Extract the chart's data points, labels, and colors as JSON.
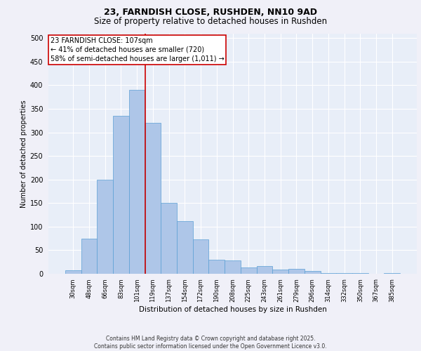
{
  "title_line1": "23, FARNDISH CLOSE, RUSHDEN, NN10 9AD",
  "title_line2": "Size of property relative to detached houses in Rushden",
  "xlabel": "Distribution of detached houses by size in Rushden",
  "ylabel": "Number of detached properties",
  "categories": [
    "30sqm",
    "48sqm",
    "66sqm",
    "83sqm",
    "101sqm",
    "119sqm",
    "137sqm",
    "154sqm",
    "172sqm",
    "190sqm",
    "208sqm",
    "225sqm",
    "243sqm",
    "261sqm",
    "279sqm",
    "296sqm",
    "314sqm",
    "332sqm",
    "350sqm",
    "367sqm",
    "385sqm"
  ],
  "values": [
    8,
    75,
    200,
    335,
    390,
    320,
    150,
    112,
    73,
    30,
    28,
    14,
    17,
    9,
    11,
    6,
    2,
    1,
    1,
    0,
    1
  ],
  "bar_color": "#aec6e8",
  "bar_edge_color": "#5a9fd4",
  "background_color": "#e8eef8",
  "grid_color": "#ffffff",
  "property_label": "23 FARNDISH CLOSE: 107sqm",
  "pct_smaller": 41,
  "n_smaller": 720,
  "pct_larger_semi": 58,
  "n_larger_semi": "1,011",
  "vline_color": "#cc0000",
  "annotation_box_color": "#cc0000",
  "annotation_fontsize": 7,
  "title_fontsize": 9,
  "subtitle_fontsize": 8.5,
  "footer_text": "Contains HM Land Registry data © Crown copyright and database right 2025.\nContains public sector information licensed under the Open Government Licence v3.0.",
  "ylim": [
    0,
    510
  ],
  "vline_x": 4.5
}
